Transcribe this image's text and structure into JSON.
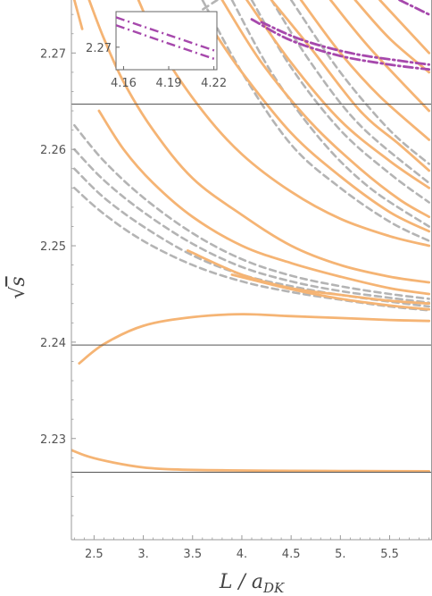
{
  "chart_data": {
    "type": "line",
    "xlabel": "L / a",
    "xlabel_subscript": "DK",
    "ylabel": "s",
    "ylabel_radical": "√",
    "xlim": [
      2.27,
      5.93
    ],
    "ylim": [
      2.2195,
      2.2755
    ],
    "x_ticks": [
      2.5,
      3.0,
      3.5,
      4.0,
      4.5,
      5.0,
      5.5
    ],
    "x_tick_labels": [
      "2.5",
      "3.",
      "3.5",
      "4.",
      "4.5",
      "5.",
      "5.5"
    ],
    "y_ticks": [
      2.23,
      2.24,
      2.25,
      2.26,
      2.27
    ],
    "y_tick_labels": [
      "2.23",
      "2.24",
      "2.25",
      "2.26",
      "2.27"
    ],
    "reference_lines": [
      2.2265,
      2.2397,
      2.2647
    ],
    "colors": {
      "orange": "#f5b474",
      "gray": "#b4b4b4",
      "purple": "#a648ac",
      "reference": "#555555",
      "frame": "#999999"
    },
    "orange_series": [
      [
        [
          2.27,
          2.2288
        ],
        [
          2.45,
          2.2281
        ],
        [
          2.7,
          2.2275
        ],
        [
          3.0,
          2.227
        ],
        [
          3.3,
          2.2268
        ],
        [
          3.8,
          2.2267
        ],
        [
          4.5,
          2.22665
        ],
        [
          5.2,
          2.22662
        ],
        [
          5.9,
          2.2266
        ]
      ],
      [
        [
          2.35,
          2.2378
        ],
        [
          2.6,
          2.2398
        ],
        [
          3.0,
          2.2417
        ],
        [
          3.5,
          2.2426
        ],
        [
          4.0,
          2.2429
        ],
        [
          4.5,
          2.2427
        ],
        [
          5.0,
          2.2425
        ],
        [
          5.5,
          2.2423
        ],
        [
          5.9,
          2.2422
        ]
      ],
      [
        [
          3.9,
          2.247
        ],
        [
          4.5,
          2.2455
        ],
        [
          5.0,
          2.2445
        ],
        [
          5.5,
          2.2438
        ],
        [
          5.9,
          2.2434
        ]
      ],
      [
        [
          3.45,
          2.2495
        ],
        [
          4.0,
          2.247
        ],
        [
          4.5,
          2.2456
        ],
        [
          5.0,
          2.2449
        ],
        [
          5.5,
          2.2443
        ],
        [
          5.9,
          2.244
        ]
      ],
      [
        [
          2.55,
          2.264
        ],
        [
          2.8,
          2.26
        ],
        [
          3.1,
          2.2565
        ],
        [
          3.5,
          2.253
        ],
        [
          4.0,
          2.25
        ],
        [
          4.5,
          2.2482
        ],
        [
          5.0,
          2.2468
        ],
        [
          5.5,
          2.2456
        ],
        [
          5.9,
          2.245
        ]
      ],
      [
        [
          2.45,
          2.2755
        ],
        [
          2.6,
          2.2715
        ],
        [
          2.8,
          2.267
        ],
        [
          3.1,
          2.262
        ],
        [
          3.5,
          2.257
        ],
        [
          4.0,
          2.2532
        ],
        [
          4.5,
          2.25
        ],
        [
          5.0,
          2.248
        ],
        [
          5.5,
          2.2468
        ],
        [
          5.9,
          2.2462
        ]
      ],
      [
        [
          2.95,
          2.2755
        ],
        [
          3.2,
          2.27
        ],
        [
          3.6,
          2.264
        ],
        [
          4.0,
          2.2595
        ],
        [
          4.5,
          2.2556
        ],
        [
          5.0,
          2.2528
        ],
        [
          5.5,
          2.251
        ],
        [
          5.9,
          2.25
        ]
      ],
      [
        [
          3.7,
          2.2725
        ],
        [
          4.0,
          2.268
        ],
        [
          4.5,
          2.2617
        ],
        [
          5.0,
          2.2572
        ],
        [
          5.5,
          2.2535
        ],
        [
          5.9,
          2.2515
        ]
      ],
      [
        [
          3.8,
          2.2755
        ],
        [
          4.2,
          2.269
        ],
        [
          4.7,
          2.2628
        ],
        [
          5.2,
          2.258
        ],
        [
          5.6,
          2.2548
        ],
        [
          5.9,
          2.253
        ]
      ],
      [
        [
          4.05,
          2.2755
        ],
        [
          4.5,
          2.269
        ],
        [
          5.0,
          2.263
        ],
        [
          5.5,
          2.2588
        ],
        [
          5.9,
          2.256
        ]
      ],
      [
        [
          4.3,
          2.2755
        ],
        [
          4.7,
          2.2705
        ],
        [
          5.2,
          2.264
        ],
        [
          5.6,
          2.2605
        ],
        [
          5.9,
          2.2578
        ]
      ],
      [
        [
          4.6,
          2.2755
        ],
        [
          5.0,
          2.27
        ],
        [
          5.4,
          2.2655
        ],
        [
          5.9,
          2.261
        ]
      ],
      [
        [
          4.9,
          2.2755
        ],
        [
          5.3,
          2.2705
        ],
        [
          5.9,
          2.264
        ]
      ],
      [
        [
          5.15,
          2.2755
        ],
        [
          5.5,
          2.2715
        ],
        [
          5.9,
          2.268
        ]
      ],
      [
        [
          5.4,
          2.2755
        ],
        [
          5.9,
          2.27
        ]
      ],
      [
        [
          2.3,
          2.2755
        ],
        [
          2.38,
          2.2725
        ]
      ]
    ],
    "gray_dashed_series": [
      [
        [
          2.3,
          2.256
        ],
        [
          2.6,
          2.2533
        ],
        [
          3.0,
          2.2505
        ],
        [
          3.5,
          2.248
        ],
        [
          4.0,
          2.2463
        ],
        [
          4.5,
          2.2452
        ],
        [
          5.0,
          2.2444
        ],
        [
          5.5,
          2.2437
        ],
        [
          5.9,
          2.2433
        ]
      ],
      [
        [
          2.3,
          2.258
        ],
        [
          2.6,
          2.255
        ],
        [
          3.0,
          2.252
        ],
        [
          3.5,
          2.249
        ],
        [
          4.0,
          2.247
        ],
        [
          4.5,
          2.2458
        ],
        [
          5.0,
          2.2449
        ],
        [
          5.5,
          2.2442
        ],
        [
          5.9,
          2.2437
        ]
      ],
      [
        [
          2.3,
          2.26
        ],
        [
          2.6,
          2.2568
        ],
        [
          3.0,
          2.2535
        ],
        [
          3.5,
          2.2502
        ],
        [
          4.0,
          2.2478
        ],
        [
          4.5,
          2.2463
        ],
        [
          5.0,
          2.2453
        ],
        [
          5.5,
          2.2446
        ],
        [
          5.9,
          2.2441
        ]
      ],
      [
        [
          2.3,
          2.2625
        ],
        [
          2.6,
          2.2588
        ],
        [
          3.0,
          2.255
        ],
        [
          3.5,
          2.2513
        ],
        [
          4.0,
          2.2486
        ],
        [
          4.5,
          2.2469
        ],
        [
          5.0,
          2.2458
        ],
        [
          5.5,
          2.245
        ],
        [
          5.9,
          2.2445
        ]
      ],
      [
        [
          3.6,
          2.2755
        ],
        [
          4.0,
          2.268
        ],
        [
          4.5,
          2.2605
        ],
        [
          5.0,
          2.256
        ],
        [
          5.5,
          2.2525
        ],
        [
          5.9,
          2.2505
        ]
      ],
      [
        [
          3.9,
          2.2755
        ],
        [
          4.3,
          2.268
        ],
        [
          4.8,
          2.261
        ],
        [
          5.3,
          2.256
        ],
        [
          5.9,
          2.252
        ]
      ],
      [
        [
          4.1,
          2.2755
        ],
        [
          4.5,
          2.2685
        ],
        [
          5.0,
          2.262
        ],
        [
          5.5,
          2.2575
        ],
        [
          5.9,
          2.2545
        ]
      ],
      [
        [
          4.3,
          2.2755
        ],
        [
          4.7,
          2.269
        ],
        [
          5.2,
          2.2625
        ],
        [
          5.9,
          2.2565
        ]
      ],
      [
        [
          4.5,
          2.2755
        ],
        [
          5.0,
          2.268
        ],
        [
          5.5,
          2.262
        ],
        [
          5.9,
          2.2585
        ]
      ],
      [
        [
          3.75,
          2.2755
        ],
        [
          3.6,
          2.2745
        ]
      ]
    ],
    "purple_dashdot_series": [
      [
        [
          4.1,
          2.2735
        ],
        [
          4.5,
          2.2713
        ],
        [
          5.0,
          2.2697
        ],
        [
          5.5,
          2.2688
        ],
        [
          5.9,
          2.2683
        ]
      ],
      [
        [
          4.2,
          2.2732
        ],
        [
          4.6,
          2.2714
        ],
        [
          5.1,
          2.27
        ],
        [
          5.6,
          2.2692
        ],
        [
          5.9,
          2.2688
        ]
      ],
      [
        [
          5.6,
          2.2755
        ],
        [
          5.9,
          2.274
        ]
      ]
    ],
    "inset": {
      "xlim": [
        4.155,
        4.222
      ],
      "ylim": [
        2.2657,
        2.2768
      ],
      "x_ticks": [
        4.16,
        4.19,
        4.22
      ],
      "x_tick_labels": [
        "4.16",
        "4.19",
        "4.22"
      ],
      "y_ticks": [
        2.27
      ],
      "y_tick_labels": [
        "2.27"
      ],
      "purple_dashdot_series": [
        [
          [
            4.155,
            2.2757
          ],
          [
            4.188,
            2.2725
          ],
          [
            4.222,
            2.2692
          ]
        ],
        [
          [
            4.155,
            2.2742
          ],
          [
            4.188,
            2.2709
          ],
          [
            4.222,
            2.2676
          ]
        ]
      ]
    }
  }
}
